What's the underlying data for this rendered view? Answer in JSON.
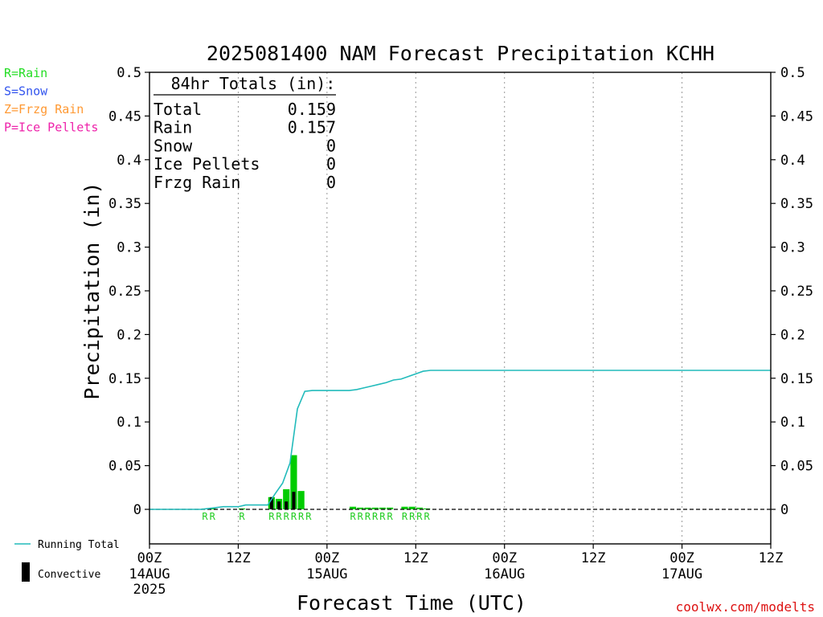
{
  "chart_data": {
    "type": "bar",
    "title": "2025081400 NAM Forecast Precipitation KCHH",
    "xlabel": "Forecast Time (UTC)",
    "ylabel": "Precipitation (in)",
    "ylim": [
      0,
      0.5
    ],
    "yticks": [
      "0",
      "0.05",
      "0.1",
      "0.15",
      "0.2",
      "0.25",
      "0.3",
      "0.35",
      "0.4",
      "0.45",
      "0.5"
    ],
    "x_unit": "forecast hour",
    "xlim": [
      0,
      84
    ],
    "xticks": [
      {
        "hour": 0,
        "label": "00Z",
        "sub": "14AUG",
        "sub2": "2025"
      },
      {
        "hour": 12,
        "label": "12Z",
        "sub": "",
        "sub2": ""
      },
      {
        "hour": 24,
        "label": "00Z",
        "sub": "15AUG",
        "sub2": ""
      },
      {
        "hour": 36,
        "label": "12Z",
        "sub": "",
        "sub2": ""
      },
      {
        "hour": 48,
        "label": "00Z",
        "sub": "16AUG",
        "sub2": ""
      },
      {
        "hour": 60,
        "label": "12Z",
        "sub": "",
        "sub2": ""
      },
      {
        "hour": 72,
        "label": "00Z",
        "sub": "17AUG",
        "sub2": ""
      },
      {
        "hour": 84,
        "label": "12Z",
        "sub": "",
        "sub2": ""
      }
    ],
    "totals_box": {
      "heading": "84hr Totals (in):",
      "rows": [
        {
          "label": "Total",
          "value": "0.159"
        },
        {
          "label": "Rain",
          "value": "0.157"
        },
        {
          "label": "Snow",
          "value": "0"
        },
        {
          "label": "Ice Pellets",
          "value": "0"
        },
        {
          "label": "Frzg Rain",
          "value": "0"
        }
      ]
    },
    "ptype_legend": [
      {
        "text": "R=Rain",
        "color": "#22dd22"
      },
      {
        "text": "S=Snow",
        "color": "#3355ee"
      },
      {
        "text": "Z=Frzg Rain",
        "color": "#ff9933"
      },
      {
        "text": "P=Ice Pellets",
        "color": "#ee22aa"
      }
    ],
    "series": [
      {
        "name": "Rain",
        "color": "#00cc00",
        "bars": [
          {
            "hour": 8,
            "value": 0.001
          },
          {
            "hour": 9,
            "value": 0.001
          },
          {
            "hour": 13,
            "value": 0.001
          },
          {
            "hour": 17,
            "value": 0.014
          },
          {
            "hour": 18,
            "value": 0.012
          },
          {
            "hour": 19,
            "value": 0.023
          },
          {
            "hour": 20,
            "value": 0.062
          },
          {
            "hour": 21,
            "value": 0.021
          },
          {
            "hour": 28,
            "value": 0.003
          },
          {
            "hour": 29,
            "value": 0.002
          },
          {
            "hour": 30,
            "value": 0.002
          },
          {
            "hour": 31,
            "value": 0.002
          },
          {
            "hour": 32,
            "value": 0.002
          },
          {
            "hour": 33,
            "value": 0.002
          },
          {
            "hour": 35,
            "value": 0.003
          },
          {
            "hour": 36,
            "value": 0.003
          },
          {
            "hour": 37,
            "value": 0.002
          },
          {
            "hour": 38,
            "value": 0.001
          }
        ]
      },
      {
        "name": "Convective",
        "color": "#000000",
        "bars": [
          {
            "hour": 17,
            "value": 0.014
          },
          {
            "hour": 18,
            "value": 0.009
          },
          {
            "hour": 19,
            "value": 0.009
          },
          {
            "hour": 20,
            "value": 0.02
          }
        ]
      },
      {
        "name": "Running Total",
        "color": "#22bbbb",
        "points": [
          [
            0,
            0
          ],
          [
            7,
            0
          ],
          [
            8,
            0.001
          ],
          [
            9,
            0.002
          ],
          [
            10,
            0.003
          ],
          [
            12,
            0.003
          ],
          [
            13,
            0.005
          ],
          [
            16,
            0.005
          ],
          [
            17,
            0.018
          ],
          [
            18,
            0.03
          ],
          [
            19,
            0.053
          ],
          [
            20,
            0.115
          ],
          [
            21,
            0.135
          ],
          [
            22,
            0.136
          ],
          [
            24,
            0.136
          ],
          [
            27,
            0.136
          ],
          [
            28,
            0.137
          ],
          [
            29,
            0.139
          ],
          [
            30,
            0.141
          ],
          [
            31,
            0.143
          ],
          [
            32,
            0.145
          ],
          [
            33,
            0.148
          ],
          [
            34,
            0.149
          ],
          [
            35,
            0.152
          ],
          [
            36,
            0.155
          ],
          [
            37,
            0.158
          ],
          [
            38,
            0.159
          ],
          [
            40,
            0.159
          ],
          [
            84,
            0.159
          ]
        ]
      }
    ],
    "ptype_labels": [
      {
        "hour": 8,
        "text": "R"
      },
      {
        "hour": 9,
        "text": "R"
      },
      {
        "hour": 13,
        "text": "R"
      },
      {
        "hour": 17,
        "text": "R"
      },
      {
        "hour": 18,
        "text": "R"
      },
      {
        "hour": 19,
        "text": "R"
      },
      {
        "hour": 20,
        "text": "R"
      },
      {
        "hour": 21,
        "text": "R"
      },
      {
        "hour": 22,
        "text": "R"
      },
      {
        "hour": 28,
        "text": "R"
      },
      {
        "hour": 29,
        "text": "R"
      },
      {
        "hour": 30,
        "text": "R"
      },
      {
        "hour": 31,
        "text": "R"
      },
      {
        "hour": 32,
        "text": "R"
      },
      {
        "hour": 33,
        "text": "R"
      },
      {
        "hour": 35,
        "text": "R"
      },
      {
        "hour": 36,
        "text": "R"
      },
      {
        "hour": 37,
        "text": "R"
      },
      {
        "hour": 38,
        "text": "R"
      }
    ],
    "legend": {
      "running_total_label": "Running Total",
      "convective_label": "Convective"
    },
    "watermark": "coolwx.com/modelts",
    "grid": "vertical dotted lines at 12Z/00Z",
    "zero_line": "dashed"
  }
}
